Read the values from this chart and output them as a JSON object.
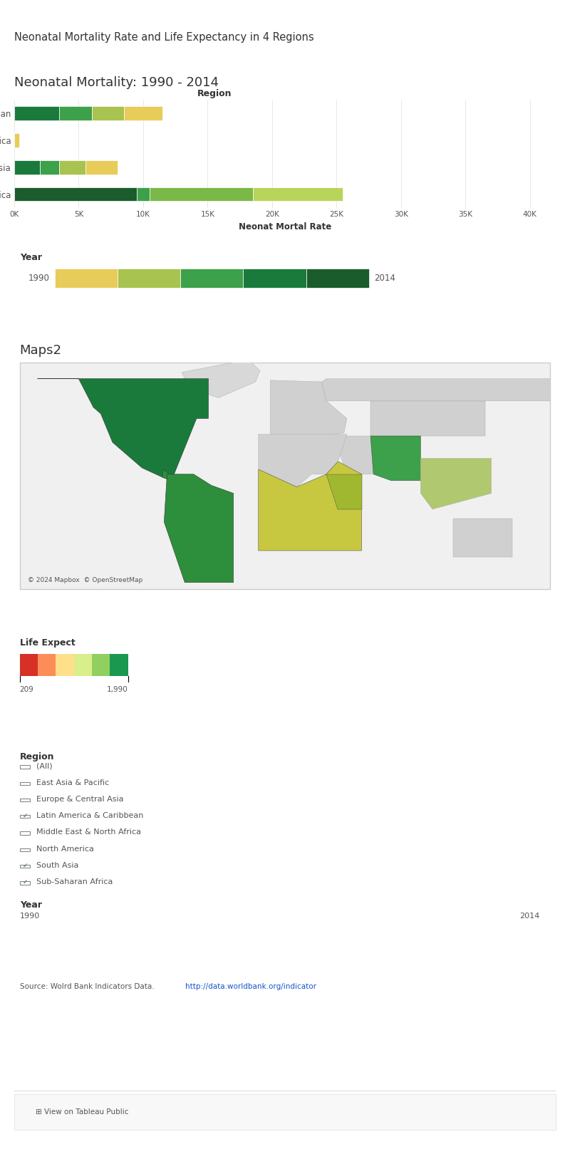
{
  "main_title": "Neonatal Mortality Rate and Life Expectancy in 4 Regions",
  "bar_chart_title": "Neonatal Mortality: 1990 - 2014",
  "bar_xlabel": "Neonat Mortal Rate",
  "regions": [
    "Latin America & Caribbean",
    "North America",
    "South Asia",
    "Sub-Saharan Africa"
  ],
  "bar_segments": {
    "Latin America & Caribbean": [
      {
        "value": 3500,
        "color": "#1a7a3c"
      },
      {
        "value": 2500,
        "color": "#3da04a"
      },
      {
        "value": 2500,
        "color": "#a8c34f"
      },
      {
        "value": 3000,
        "color": "#e8cc5a"
      }
    ],
    "North America": [
      {
        "value": 400,
        "color": "#e8cc5a"
      }
    ],
    "South Asia": [
      {
        "value": 2000,
        "color": "#1a7a3c"
      },
      {
        "value": 1500,
        "color": "#3da04a"
      },
      {
        "value": 2000,
        "color": "#a8c34f"
      },
      {
        "value": 2500,
        "color": "#e8cc5a"
      }
    ],
    "Sub-Saharan Africa": [
      {
        "value": 9500,
        "color": "#1a5c2c"
      },
      {
        "value": 1000,
        "color": "#3da04a"
      },
      {
        "value": 8000,
        "color": "#7ab848"
      },
      {
        "value": 7000,
        "color": "#b8d45a"
      }
    ]
  },
  "bar_xticks": [
    0,
    5000,
    10000,
    15000,
    20000,
    25000,
    30000,
    35000,
    40000
  ],
  "bar_xtick_labels": [
    "0K",
    "5K",
    "10K",
    "15K",
    "20K",
    "25K",
    "30K",
    "35K",
    "40K"
  ],
  "year_label": "Year",
  "year_start": "1990",
  "year_end": "2014",
  "year_bar_colors": [
    "#e8cc5a",
    "#a8c34f",
    "#3da04a",
    "#1a7a3c",
    "#1a5c2c"
  ],
  "maps2_title": "Maps2",
  "map_copyright": "© 2024 Mapbox  © OpenStreetMap",
  "life_expect_label": "Life Expect",
  "life_expect_min": "209",
  "life_expect_max": "1,990",
  "colorbar_colors": [
    "#d73027",
    "#fc8d59",
    "#fee08b",
    "#d9ef8b",
    "#91cf60",
    "#1a9850"
  ],
  "region_filter_label": "Region",
  "region_filter_items": [
    "(All)",
    "East Asia & Pacific",
    "Europe & Central Asia",
    "Latin America & Caribbean",
    "Middle East & North Africa",
    "North America",
    "South Asia",
    "Sub-Saharan Africa"
  ],
  "region_checked": [
    false,
    false,
    false,
    true,
    false,
    false,
    true,
    true
  ],
  "year_filter_label": "Year",
  "year_filter_start": "1990",
  "year_filter_end": "2014",
  "source_prefix": "Source: Wolrd Bank Indicators Data. ",
  "source_url": "http://data.worldbank.org/indicator",
  "bg_color": "#ffffff",
  "border_color": "#cccccc",
  "text_color": "#555555",
  "title_color": "#333333"
}
